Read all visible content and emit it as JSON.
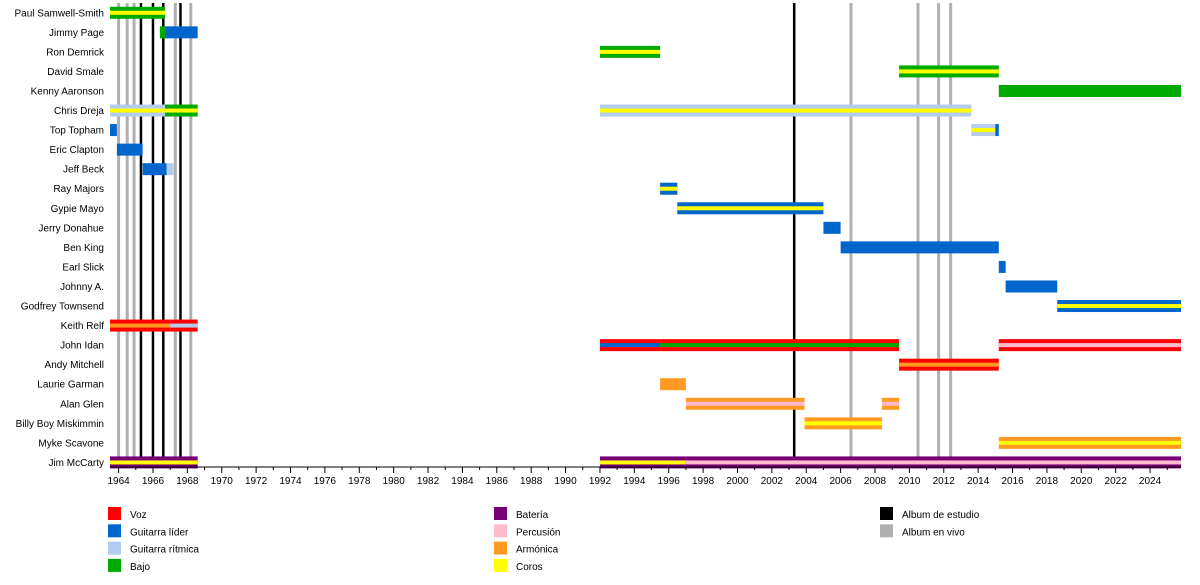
{
  "chart_data": {
    "type": "timeline",
    "title": "",
    "xlabel": "",
    "ylabel": "",
    "xlim": [
      1963.5,
      2025.8
    ],
    "tick_years": [
      1964,
      1966,
      1968,
      1970,
      1972,
      1974,
      1976,
      1978,
      1980,
      1982,
      1984,
      1986,
      1988,
      1990,
      1992,
      1994,
      1996,
      1998,
      2000,
      2002,
      2004,
      2006,
      2008,
      2010,
      2012,
      2014,
      2016,
      2018,
      2020,
      2022,
      2024
    ],
    "members": [
      {
        "name": "Paul Samwell-Smith",
        "bars": [
          {
            "start": 1963.5,
            "end": 1966.7,
            "roles": [
              "Bajo",
              "Coros"
            ]
          }
        ]
      },
      {
        "name": "Jimmy Page",
        "bars": [
          {
            "start": 1966.4,
            "end": 1966.7,
            "roles": [
              "Bajo"
            ]
          },
          {
            "start": 1966.7,
            "end": 1968.6,
            "roles": [
              "Guitarra líder"
            ]
          }
        ]
      },
      {
        "name": "Ron Demrick",
        "bars": [
          {
            "start": 1992.0,
            "end": 1995.5,
            "roles": [
              "Bajo",
              "Coros"
            ]
          }
        ]
      },
      {
        "name": "David Smale",
        "bars": [
          {
            "start": 2009.4,
            "end": 2015.2,
            "roles": [
              "Bajo",
              "Coros"
            ]
          }
        ]
      },
      {
        "name": "Kenny Aaronson",
        "bars": [
          {
            "start": 2015.2,
            "end": 2025.8,
            "roles": [
              "Bajo"
            ]
          }
        ]
      },
      {
        "name": "Chris Dreja",
        "bars": [
          {
            "start": 1963.5,
            "end": 1966.7,
            "roles": [
              "Guitarra rítmica",
              "Coros"
            ]
          },
          {
            "start": 1966.7,
            "end": 1968.6,
            "roles": [
              "Bajo",
              "Coros"
            ]
          },
          {
            "start": 1992.0,
            "end": 2013.6,
            "roles": [
              "Guitarra rítmica",
              "Coros"
            ]
          }
        ]
      },
      {
        "name": "Top Topham",
        "bars": [
          {
            "start": 1963.5,
            "end": 1963.9,
            "roles": [
              "Guitarra líder"
            ]
          },
          {
            "start": 2013.6,
            "end": 2015.0,
            "roles": [
              "Guitarra rítmica",
              "Coros"
            ]
          },
          {
            "start": 2015.0,
            "end": 2015.2,
            "roles": [
              "Guitarra líder"
            ]
          }
        ]
      },
      {
        "name": "Eric Clapton",
        "bars": [
          {
            "start": 1963.9,
            "end": 1965.4,
            "roles": [
              "Guitarra líder"
            ]
          }
        ]
      },
      {
        "name": "Jeff Beck",
        "bars": [
          {
            "start": 1965.4,
            "end": 1966.8,
            "roles": [
              "Guitarra líder"
            ]
          },
          {
            "start": 1966.8,
            "end": 1967.2,
            "roles": [
              "Guitarra rítmica"
            ]
          }
        ]
      },
      {
        "name": "Ray Majors",
        "bars": [
          {
            "start": 1995.5,
            "end": 1996.5,
            "roles": [
              "Guitarra líder",
              "Coros"
            ]
          }
        ]
      },
      {
        "name": "Gypie Mayo",
        "bars": [
          {
            "start": 1996.5,
            "end": 2005.0,
            "roles": [
              "Guitarra líder",
              "Coros"
            ]
          }
        ]
      },
      {
        "name": "Jerry Donahue",
        "bars": [
          {
            "start": 2005.0,
            "end": 2006.0,
            "roles": [
              "Guitarra líder"
            ]
          }
        ]
      },
      {
        "name": "Ben King",
        "bars": [
          {
            "start": 2006.0,
            "end": 2015.2,
            "roles": [
              "Guitarra líder"
            ]
          }
        ]
      },
      {
        "name": "Earl Slick",
        "bars": [
          {
            "start": 2015.2,
            "end": 2015.6,
            "roles": [
              "Guitarra líder"
            ]
          }
        ]
      },
      {
        "name": "Johnny A.",
        "bars": [
          {
            "start": 2015.6,
            "end": 2018.6,
            "roles": [
              "Guitarra líder"
            ]
          }
        ]
      },
      {
        "name": "Godfrey Townsend",
        "bars": [
          {
            "start": 2018.6,
            "end": 2025.8,
            "roles": [
              "Guitarra líder",
              "Coros"
            ]
          }
        ]
      },
      {
        "name": "Keith Relf",
        "bars": [
          {
            "start": 1963.5,
            "end": 1967.0,
            "roles": [
              "Voz",
              "Armónica"
            ]
          },
          {
            "start": 1967.0,
            "end": 1968.6,
            "roles": [
              "Voz",
              "Guitarra rítmica"
            ]
          }
        ]
      },
      {
        "name": "John Idan",
        "bars": [
          {
            "start": 1992.0,
            "end": 1995.5,
            "roles": [
              "Voz",
              "Guitarra líder"
            ]
          },
          {
            "start": 1995.5,
            "end": 2009.4,
            "roles": [
              "Voz",
              "Bajo"
            ]
          },
          {
            "start": 2015.2,
            "end": 2025.8,
            "roles": [
              "Voz",
              "Percusión"
            ]
          }
        ]
      },
      {
        "name": "Andy Mitchell",
        "bars": [
          {
            "start": 2009.4,
            "end": 2015.2,
            "roles": [
              "Voz",
              "Armónica"
            ]
          }
        ]
      },
      {
        "name": "Laurie Garman",
        "bars": [
          {
            "start": 1995.5,
            "end": 1997.0,
            "roles": [
              "Armónica"
            ]
          }
        ]
      },
      {
        "name": "Alan Glen",
        "bars": [
          {
            "start": 1997.0,
            "end": 2003.9,
            "roles": [
              "Armónica",
              "Percusión"
            ]
          },
          {
            "start": 2008.4,
            "end": 2009.4,
            "roles": [
              "Armónica",
              "Percusión"
            ]
          }
        ]
      },
      {
        "name": "Billy Boy Miskimmin",
        "bars": [
          {
            "start": 2003.9,
            "end": 2008.4,
            "roles": [
              "Armónica",
              "Coros"
            ]
          }
        ]
      },
      {
        "name": "Myke Scavone",
        "bars": [
          {
            "start": 2015.2,
            "end": 2025.8,
            "roles": [
              "Armónica",
              "Coros"
            ]
          }
        ]
      },
      {
        "name": "Jim McCarty",
        "bars": [
          {
            "start": 1963.5,
            "end": 1968.6,
            "roles": [
              "Batería",
              "Coros"
            ]
          },
          {
            "start": 1992.0,
            "end": 1997.0,
            "roles": [
              "Batería",
              "Coros"
            ]
          },
          {
            "start": 1997.0,
            "end": 2025.8,
            "roles": [
              "Batería",
              "Percusión"
            ]
          }
        ]
      }
    ],
    "studio_albums": [
      1965.3,
      1966.0,
      1966.6,
      1967.6,
      2003.3
    ],
    "live_albums": [
      1964.0,
      1964.5,
      1964.9,
      1967.3,
      1968.2,
      2006.6,
      2010.5,
      2011.7,
      2012.4
    ],
    "legend": [
      {
        "label": "Voz",
        "color": "#ff0000"
      },
      {
        "label": "Guitarra líder",
        "color": "#0066cc"
      },
      {
        "label": "Guitarra rítmica",
        "color": "#b4ccee"
      },
      {
        "label": "Bajo",
        "color": "#00aa00"
      },
      {
        "label": "Batería",
        "color": "#770077"
      },
      {
        "label": "Percusión",
        "color": "#ffbbcc"
      },
      {
        "label": "Armónica",
        "color": "#ff9922"
      },
      {
        "label": "Coros",
        "color": "#ffff00"
      },
      {
        "label": "Album de estudio",
        "color": "#000000"
      },
      {
        "label": "Album en vivo",
        "color": "#b0b0b0"
      }
    ]
  }
}
